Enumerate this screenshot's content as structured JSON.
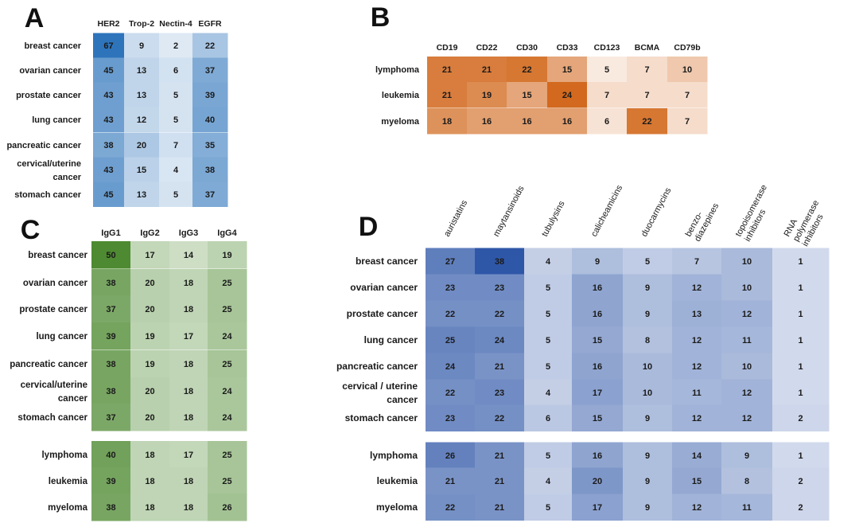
{
  "chart_data": [
    {
      "panel": "A",
      "type": "heatmap",
      "color": "#2e74bb",
      "columns": [
        "HER2",
        "Trop-2",
        "Nectin-4",
        "EGFR"
      ],
      "rows": [
        "breast cancer",
        "ovarian cancer",
        "prostate cancer",
        "lung cancer",
        "pancreatic cancer",
        "cervical/uterine cancer",
        "stomach cancer"
      ],
      "values": [
        [
          67,
          9,
          2,
          22
        ],
        [
          45,
          13,
          6,
          37
        ],
        [
          43,
          13,
          5,
          39
        ],
        [
          43,
          12,
          5,
          40
        ],
        [
          38,
          20,
          7,
          35
        ],
        [
          43,
          15,
          4,
          38
        ],
        [
          45,
          13,
          5,
          37
        ]
      ]
    },
    {
      "panel": "B",
      "type": "heatmap",
      "color": "#d2691e",
      "columns": [
        "CD19",
        "CD22",
        "CD30",
        "CD33",
        "CD123",
        "BCMA",
        "CD79b"
      ],
      "rows": [
        "lymphoma",
        "leukemia",
        "myeloma"
      ],
      "values": [
        [
          21,
          21,
          22,
          15,
          5,
          7,
          10
        ],
        [
          21,
          19,
          15,
          24,
          7,
          7,
          7
        ],
        [
          18,
          16,
          16,
          16,
          6,
          22,
          7
        ]
      ]
    },
    {
      "panel": "C",
      "type": "heatmap",
      "color": "#4e8a31",
      "columns": [
        "IgG1",
        "IgG2",
        "IgG3",
        "IgG4"
      ],
      "groups": [
        {
          "rows": [
            "breast cancer",
            "ovarian cancer",
            "prostate cancer",
            "lung cancer",
            "pancreatic cancer",
            "cervical/uterine cancer",
            "stomach cancer"
          ],
          "values": [
            [
              50,
              17,
              14,
              19
            ],
            [
              38,
              20,
              18,
              25
            ],
            [
              37,
              20,
              18,
              25
            ],
            [
              39,
              19,
              17,
              24
            ],
            [
              38,
              19,
              18,
              25
            ],
            [
              38,
              20,
              18,
              24
            ],
            [
              37,
              20,
              18,
              24
            ]
          ]
        },
        {
          "rows": [
            "lymphoma",
            "leukemia",
            "myeloma"
          ],
          "values": [
            [
              40,
              18,
              17,
              25
            ],
            [
              39,
              18,
              18,
              25
            ],
            [
              38,
              18,
              18,
              26
            ]
          ]
        }
      ]
    },
    {
      "panel": "D",
      "type": "heatmap",
      "color": "#2f57a8",
      "columns": [
        "auristatins",
        "maytansinoids",
        "tubulysins",
        "calicheamicins",
        "duocarmycins",
        "benzo- diazepines",
        "topoisomerase inhibitors",
        "RNA polymerase inhibitors"
      ],
      "groups": [
        {
          "rows": [
            "breast cancer",
            "ovarian cancer",
            "prostate cancer",
            "lung cancer",
            "pancreatic cancer",
            "cervical / uterine cancer",
            "stomach cancer"
          ],
          "values": [
            [
              27,
              38,
              4,
              9,
              5,
              7,
              10,
              1
            ],
            [
              23,
              23,
              5,
              16,
              9,
              12,
              10,
              1
            ],
            [
              22,
              22,
              5,
              16,
              9,
              13,
              12,
              1
            ],
            [
              25,
              24,
              5,
              15,
              8,
              12,
              11,
              1
            ],
            [
              24,
              21,
              5,
              16,
              10,
              12,
              10,
              1
            ],
            [
              22,
              23,
              4,
              17,
              10,
              11,
              12,
              1
            ],
            [
              23,
              22,
              6,
              15,
              9,
              12,
              12,
              2
            ]
          ]
        },
        {
          "rows": [
            "lymphoma",
            "leukemia",
            "myeloma"
          ],
          "values": [
            [
              26,
              21,
              5,
              16,
              9,
              14,
              9,
              1
            ],
            [
              21,
              21,
              4,
              20,
              9,
              15,
              8,
              2
            ],
            [
              22,
              21,
              5,
              17,
              9,
              12,
              11,
              2
            ]
          ]
        }
      ]
    }
  ]
}
